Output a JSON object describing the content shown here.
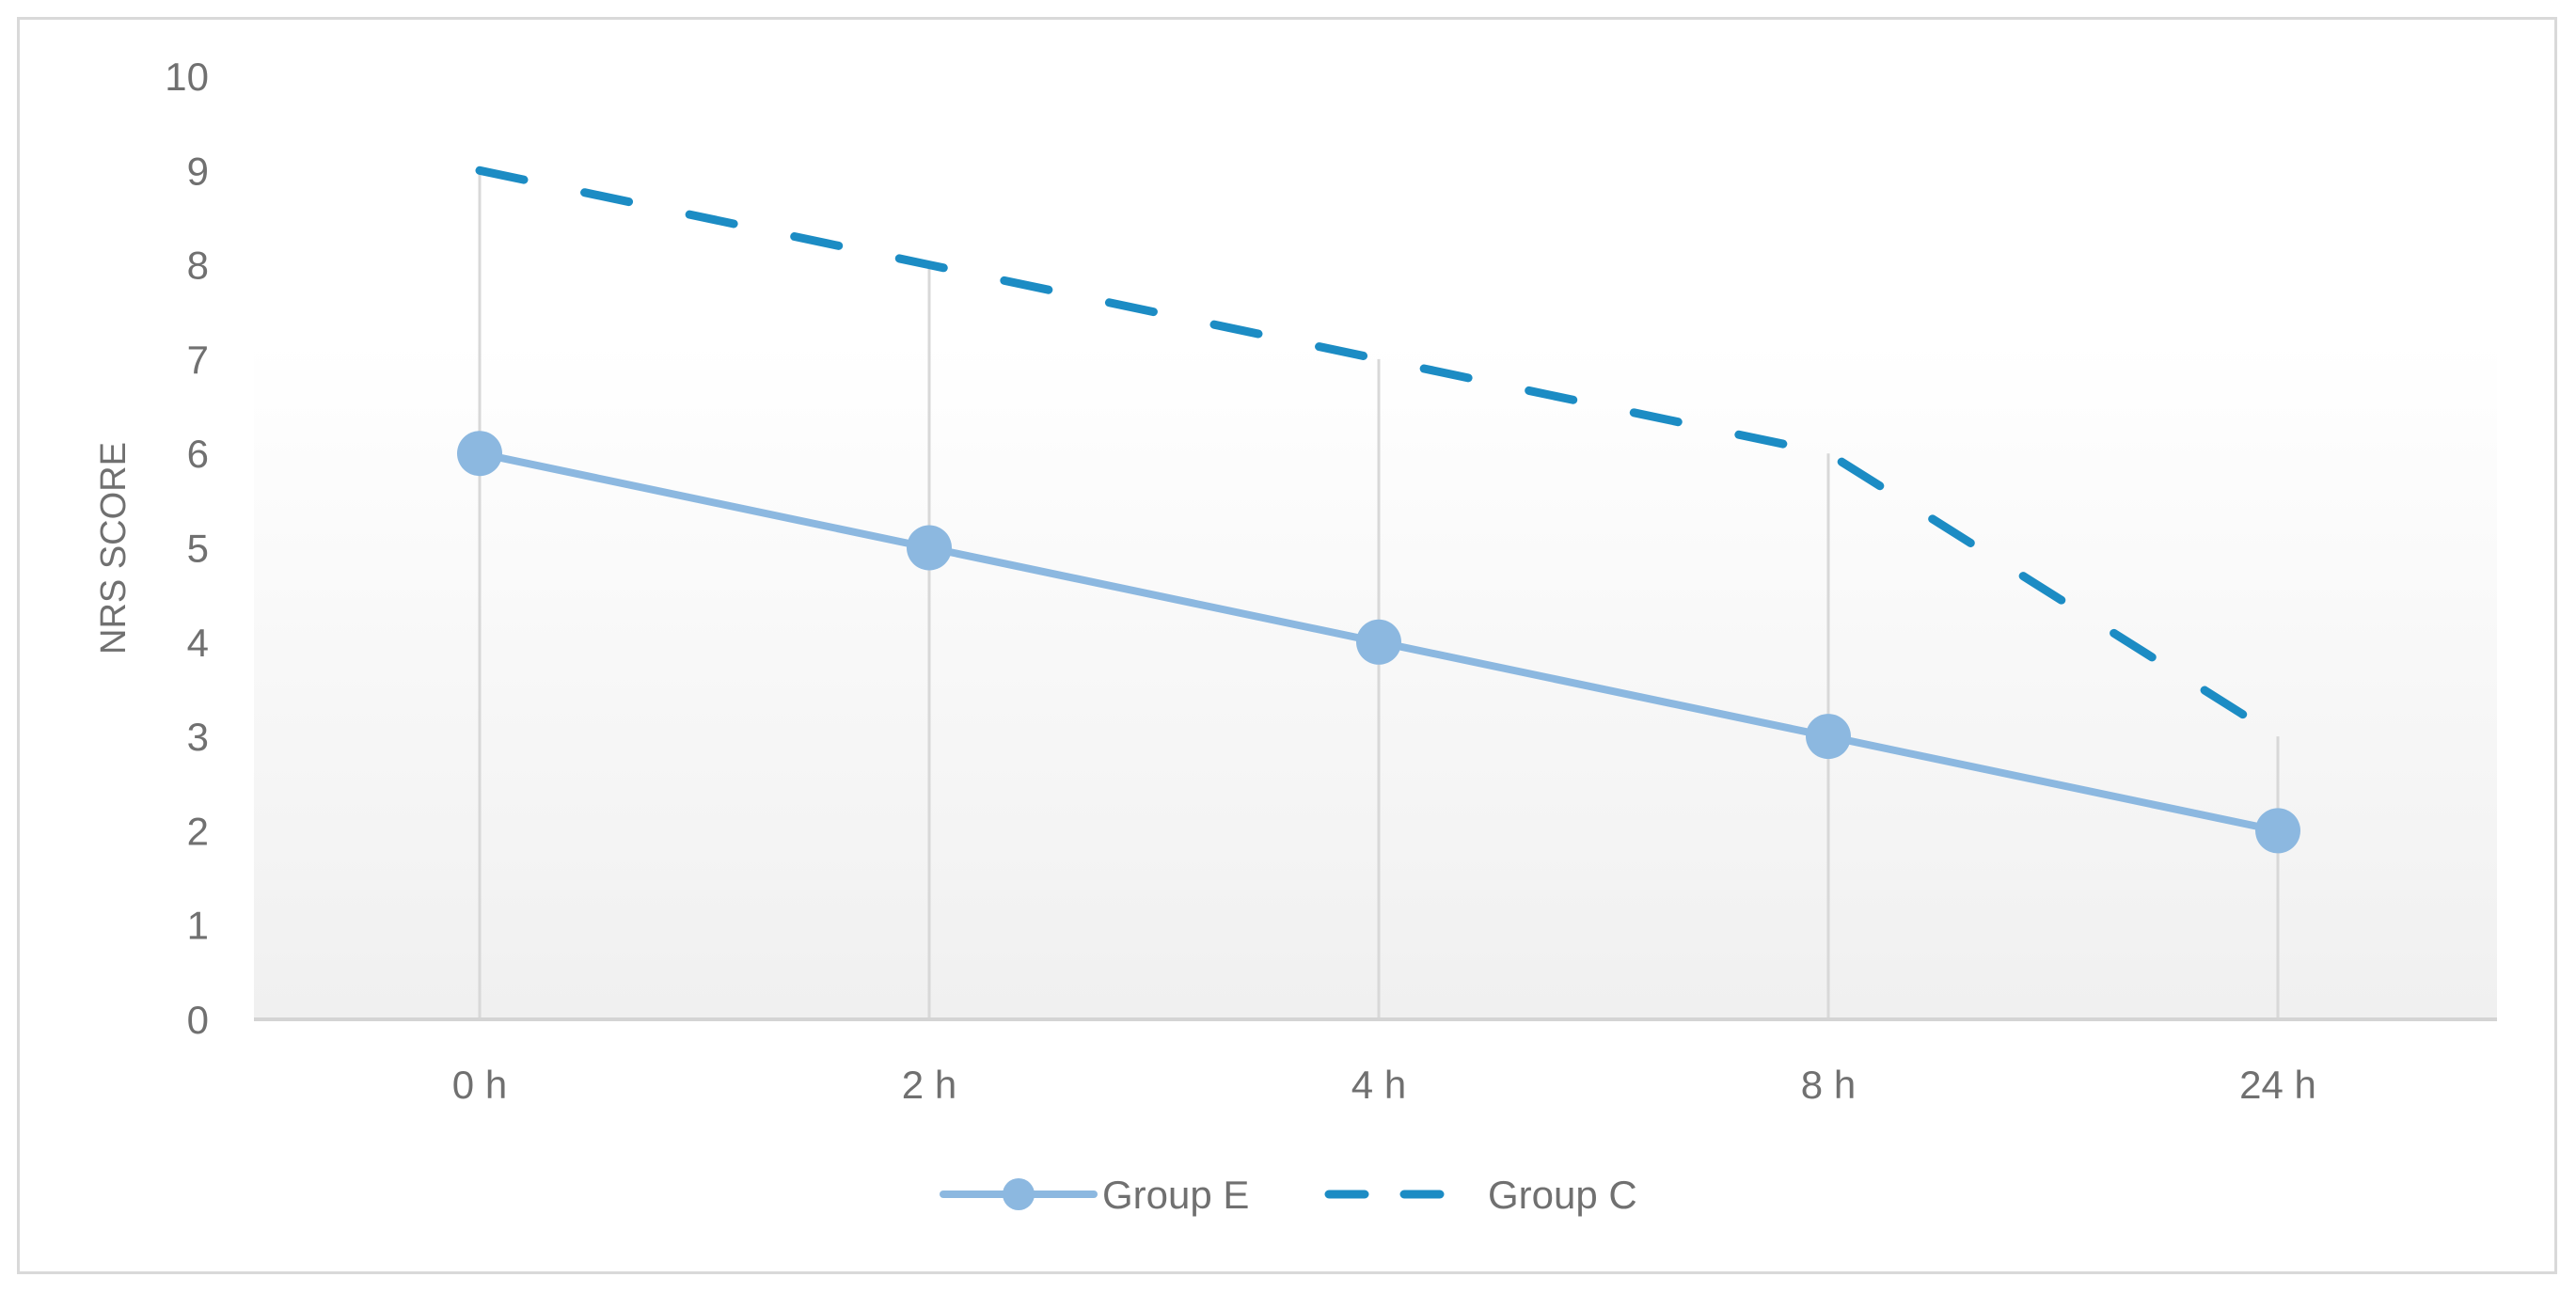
{
  "chart_data": {
    "type": "line",
    "categories": [
      "0 h",
      "2 h",
      "4 h",
      "8 h",
      "24 h"
    ],
    "ylabel": "NRS SCORE",
    "ylim": [
      0,
      10
    ],
    "yticks": [
      0,
      1,
      2,
      3,
      4,
      5,
      6,
      7,
      8,
      9,
      10
    ],
    "grid": "vertical drop lines",
    "legend": "bottom",
    "series": [
      {
        "name": "Group E",
        "values": [
          6,
          5,
          4,
          3,
          2
        ],
        "color": "#8cb8e0",
        "style": "solid",
        "marker": "circle"
      },
      {
        "name": "Group C",
        "values": [
          9,
          8,
          7,
          6,
          3
        ],
        "color": "#1c8cc4",
        "style": "dashed",
        "marker": "none"
      }
    ]
  }
}
